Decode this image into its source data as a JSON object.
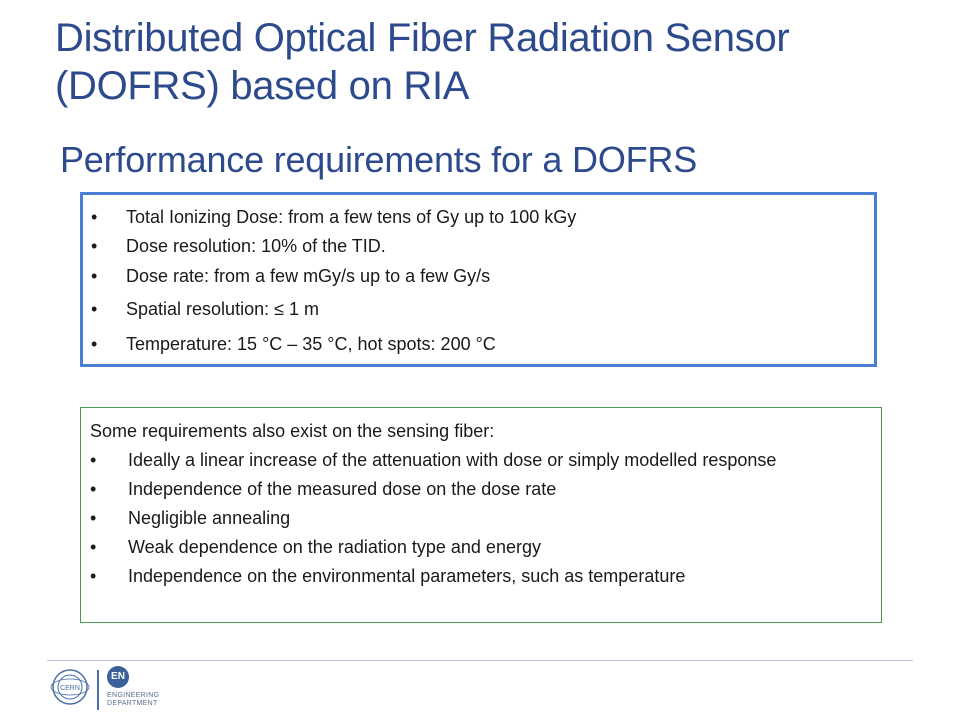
{
  "slide": {
    "title_line1": "Distributed Optical Fiber Radiation Sensor",
    "title_line2": "(DOFRS) based on RIA",
    "subtitle": "Performance requirements for a DOFRS"
  },
  "requirements_box": {
    "bullet_char": "•",
    "items": [
      "Total Ionizing Dose: from a few tens of Gy up to 100 kGy",
      "Dose resolution: 10% of the TID.",
      "Dose rate: from a few mGy/s up to a few Gy/s",
      "Spatial resolution: ≤ 1 m",
      "Temperature: 15 °C – 35 °C, hot spots: 200 °C"
    ],
    "border_color": "#4a7fd4"
  },
  "fiber_box": {
    "intro": "Some requirements also exist on the sensing fiber:",
    "items": [
      "Ideally a linear increase of the attenuation with dose or simply modelled response",
      "Independence of the measured dose on the dose rate",
      "Negligible annealing",
      "Weak dependence on the radiation type and energy",
      "Independence on the environmental parameters, such as temperature"
    ],
    "border_color": "#4a9a50"
  },
  "footer": {
    "cern_logo_text": "CERN",
    "en_logo_text": "EN",
    "dept_line1": "ENGINEERING",
    "dept_line2": "DEPARTMENT"
  },
  "colors": {
    "title": "#2c4a8c",
    "body_text": "#1a1a1a"
  }
}
